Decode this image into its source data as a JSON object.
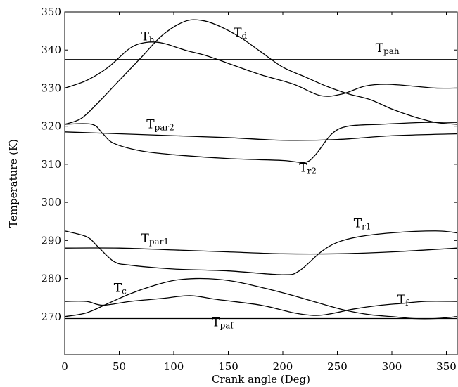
{
  "chart_data": {
    "type": "line",
    "xlabel": "Crank angle (Deg)",
    "ylabel": "Temperature (K)",
    "xlim": [
      0,
      360
    ],
    "ylim": [
      260,
      350
    ],
    "xticks": [
      0,
      50,
      100,
      150,
      200,
      250,
      300,
      350
    ],
    "yticks": [
      270,
      280,
      290,
      300,
      310,
      320,
      330,
      340,
      350
    ],
    "grid": false,
    "legend": "none",
    "series": [
      {
        "name": "Th",
        "label": {
          "main": "T",
          "sub": "h",
          "at": [
            70,
            342.5
          ]
        },
        "points": [
          [
            0,
            330
          ],
          [
            20,
            332
          ],
          [
            40,
            335.5
          ],
          [
            60,
            340.5
          ],
          [
            75,
            342
          ],
          [
            90,
            341.8
          ],
          [
            110,
            340
          ],
          [
            130,
            338.5
          ],
          [
            150,
            336.5
          ],
          [
            180,
            333.5
          ],
          [
            210,
            331
          ],
          [
            235,
            328
          ],
          [
            255,
            328.5
          ],
          [
            275,
            330.5
          ],
          [
            295,
            331
          ],
          [
            320,
            330.5
          ],
          [
            340,
            330
          ],
          [
            360,
            330
          ]
        ]
      },
      {
        "name": "Td",
        "label": {
          "main": "T",
          "sub": "d",
          "at": [
            155,
            343.5
          ]
        },
        "points": [
          [
            0,
            320.5
          ],
          [
            15,
            322
          ],
          [
            30,
            326
          ],
          [
            50,
            332
          ],
          [
            70,
            338
          ],
          [
            90,
            344
          ],
          [
            110,
            347.5
          ],
          [
            125,
            347.8
          ],
          [
            140,
            346.5
          ],
          [
            160,
            343.5
          ],
          [
            180,
            339.5
          ],
          [
            200,
            335.5
          ],
          [
            220,
            333
          ],
          [
            240,
            330.5
          ],
          [
            260,
            328.5
          ],
          [
            280,
            327
          ],
          [
            300,
            324.5
          ],
          [
            320,
            322.5
          ],
          [
            340,
            321
          ],
          [
            360,
            320.5
          ]
        ]
      },
      {
        "name": "Tpah",
        "label": {
          "main": "T",
          "sub": "pah",
          "at": [
            285,
            339.5
          ]
        },
        "points": [
          [
            0,
            337.5
          ],
          [
            360,
            337.5
          ]
        ]
      },
      {
        "name": "Tpar2",
        "label": {
          "main": "T",
          "sub": "par2",
          "at": [
            75,
            319.5
          ]
        },
        "points": [
          [
            0,
            318.5
          ],
          [
            50,
            318
          ],
          [
            100,
            317.5
          ],
          [
            150,
            317
          ],
          [
            200,
            316.3
          ],
          [
            250,
            316.5
          ],
          [
            300,
            317.5
          ],
          [
            360,
            318
          ]
        ]
      },
      {
        "name": "Tr2",
        "label": {
          "main": "T",
          "sub": "r2",
          "at": [
            215,
            308
          ]
        },
        "points": [
          [
            0,
            320.5
          ],
          [
            25,
            320.5
          ],
          [
            35,
            318
          ],
          [
            45,
            315.5
          ],
          [
            70,
            313.5
          ],
          [
            100,
            312.5
          ],
          [
            150,
            311.5
          ],
          [
            200,
            311
          ],
          [
            220,
            310.5
          ],
          [
            230,
            312.5
          ],
          [
            245,
            318
          ],
          [
            260,
            320
          ],
          [
            290,
            320.5
          ],
          [
            330,
            321
          ],
          [
            360,
            321
          ]
        ]
      },
      {
        "name": "Tpar1",
        "label": {
          "main": "T",
          "sub": "par1",
          "at": [
            70,
            289.5
          ]
        },
        "points": [
          [
            0,
            288
          ],
          [
            50,
            288
          ],
          [
            100,
            287.5
          ],
          [
            150,
            287
          ],
          [
            200,
            286.5
          ],
          [
            250,
            286.5
          ],
          [
            300,
            287
          ],
          [
            360,
            288
          ]
        ]
      },
      {
        "name": "Tr1",
        "label": {
          "main": "T",
          "sub": "r1",
          "at": [
            265,
            293.5
          ]
        },
        "points": [
          [
            0,
            292.5
          ],
          [
            20,
            291
          ],
          [
            30,
            288.5
          ],
          [
            45,
            284.5
          ],
          [
            60,
            283.5
          ],
          [
            100,
            282.5
          ],
          [
            150,
            282
          ],
          [
            200,
            281
          ],
          [
            215,
            282
          ],
          [
            235,
            287
          ],
          [
            250,
            289.5
          ],
          [
            270,
            291
          ],
          [
            300,
            292
          ],
          [
            340,
            292.5
          ],
          [
            360,
            292
          ]
        ]
      },
      {
        "name": "Tc",
        "label": {
          "main": "T",
          "sub": "c",
          "at": [
            45,
            276.5
          ]
        },
        "points": [
          [
            0,
            270
          ],
          [
            20,
            271
          ],
          [
            40,
            273.5
          ],
          [
            60,
            276
          ],
          [
            80,
            278
          ],
          [
            100,
            279.5
          ],
          [
            120,
            280
          ],
          [
            140,
            279.8
          ],
          [
            160,
            279
          ],
          [
            190,
            277
          ],
          [
            210,
            275.5
          ],
          [
            240,
            273
          ],
          [
            260,
            271.5
          ],
          [
            280,
            270.5
          ],
          [
            300,
            270
          ],
          [
            320,
            269.5
          ],
          [
            340,
            269.5
          ],
          [
            360,
            270
          ]
        ]
      },
      {
        "name": "Tf",
        "label": {
          "main": "T",
          "sub": "f",
          "at": [
            305,
            273.5
          ]
        },
        "points": [
          [
            0,
            274
          ],
          [
            20,
            274
          ],
          [
            35,
            273
          ],
          [
            60,
            274
          ],
          [
            90,
            274.8
          ],
          [
            115,
            275.5
          ],
          [
            140,
            274.5
          ],
          [
            180,
            273
          ],
          [
            210,
            271
          ],
          [
            230,
            270.3
          ],
          [
            245,
            270.8
          ],
          [
            265,
            272
          ],
          [
            290,
            273
          ],
          [
            310,
            273.5
          ],
          [
            330,
            274
          ],
          [
            360,
            274
          ]
        ]
      },
      {
        "name": "Tpaf",
        "label": {
          "main": "T",
          "sub": "paf",
          "at": [
            135,
            267.5
          ]
        },
        "points": [
          [
            0,
            269.5
          ],
          [
            360,
            269.5
          ]
        ]
      }
    ]
  }
}
